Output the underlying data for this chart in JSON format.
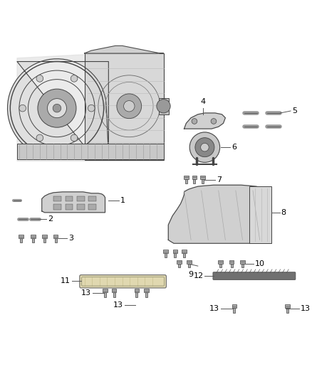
{
  "bg_color": "#ffffff",
  "fig_width": 4.38,
  "fig_height": 5.33,
  "dpi": 100,
  "line_color": "#444444",
  "part_fill": "#d8d8d8",
  "bolt_fill": "#b0b0b0",
  "dark_fill": "#555555"
}
